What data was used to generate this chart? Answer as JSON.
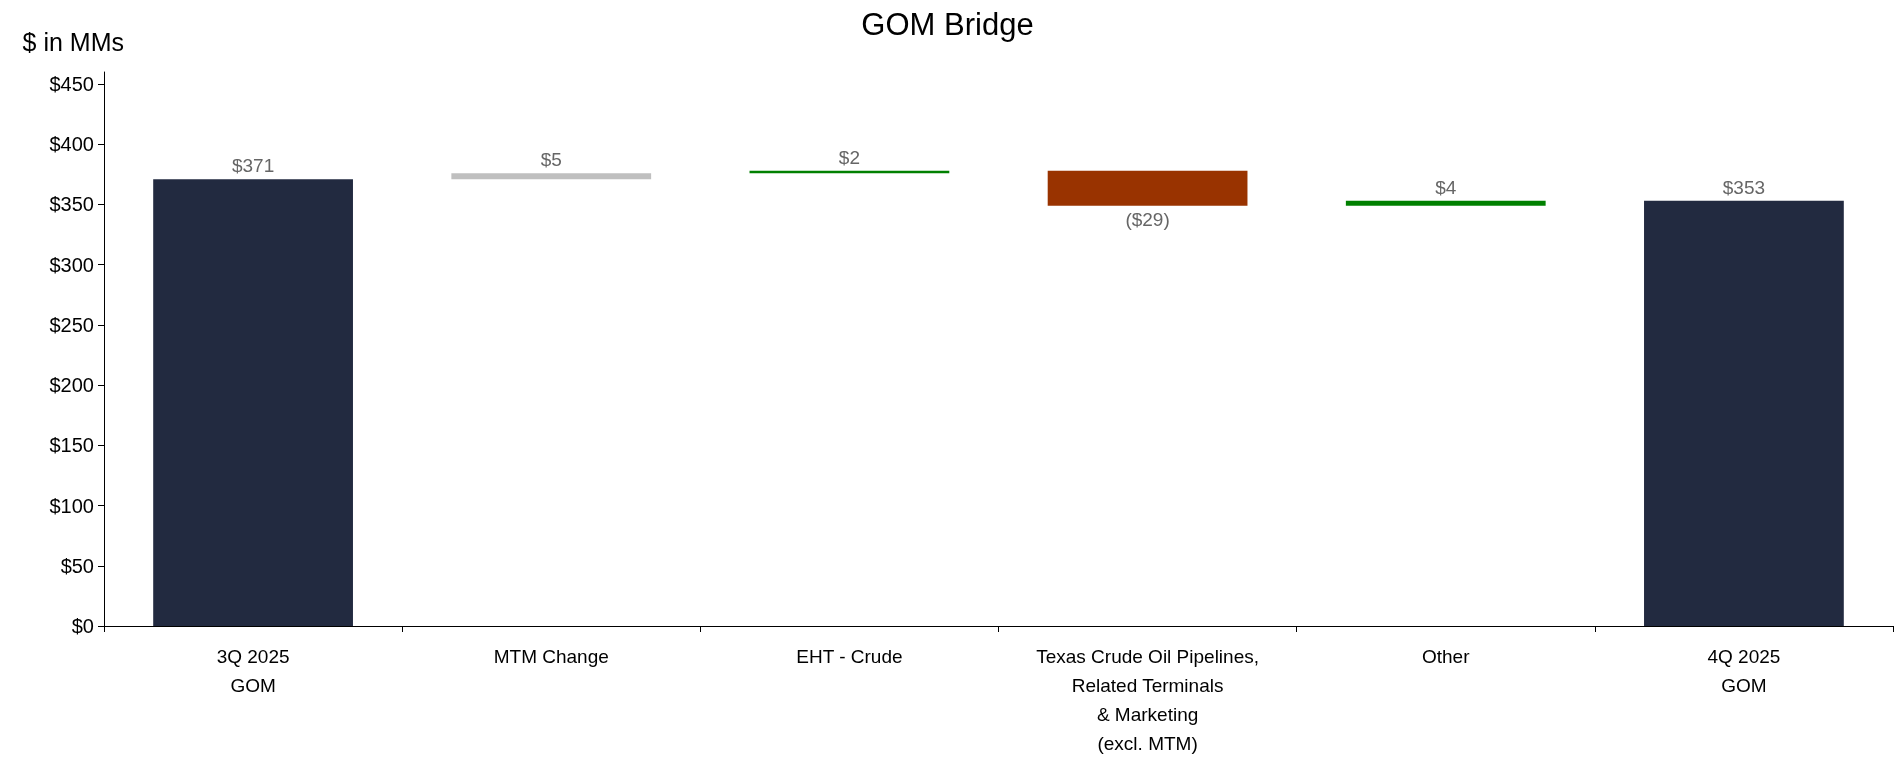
{
  "chart_data": {
    "type": "bar",
    "title": "GOM Bridge",
    "ylabel": "$ in MMs",
    "categories": [
      "3Q 2025\nGOM",
      "MTM Change",
      "EHT - Crude",
      "Texas Crude Oil Pipelines,\nRelated Terminals\n& Marketing\n(excl. MTM)",
      "Other",
      "4Q 2025\nGOM"
    ],
    "values": [
      371,
      5,
      2,
      -29,
      4,
      353
    ],
    "base": [
      0,
      371,
      376,
      378,
      349,
      0
    ],
    "colors": [
      "#222a40",
      "#bfbfbf",
      "#008000",
      "#993300",
      "#008000",
      "#222a40"
    ],
    "value_labels": [
      "$371",
      "$5",
      "$2",
      "($29)",
      "$4",
      "$353"
    ],
    "ylim": [
      0,
      460
    ],
    "yticks": [
      {
        "value": 0,
        "label": "$0"
      },
      {
        "value": 50,
        "label": "$50"
      },
      {
        "value": 100,
        "label": "$100"
      },
      {
        "value": 150,
        "label": "$150"
      },
      {
        "value": 200,
        "label": "$200"
      },
      {
        "value": 250,
        "label": "$250"
      },
      {
        "value": 300,
        "label": "$300"
      },
      {
        "value": 350,
        "label": "$350"
      },
      {
        "value": 400,
        "label": "$400"
      },
      {
        "value": 450,
        "label": "$450"
      }
    ],
    "grid": false
  }
}
